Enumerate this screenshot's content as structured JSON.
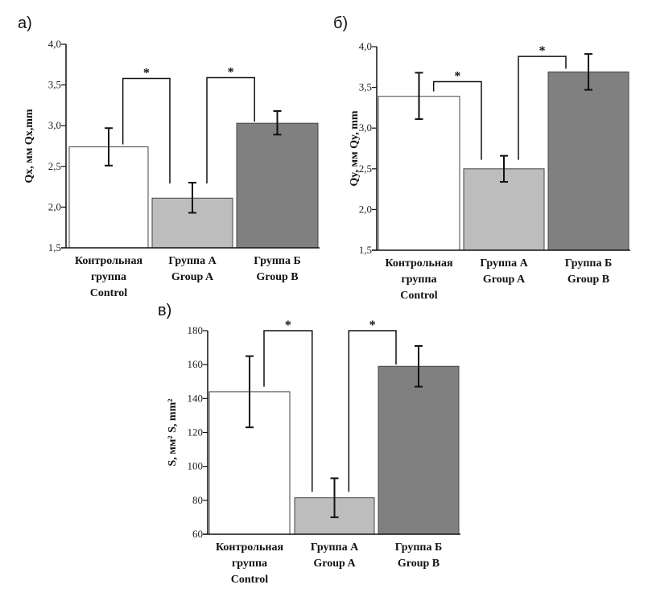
{
  "chart_data": [
    {
      "type": "bar",
      "panel_label": "а)",
      "ylabel": "Qx, мм  Qx,mm",
      "ylim": [
        1.5,
        4.0
      ],
      "yticks": [
        "1,5",
        "2,0",
        "2,5",
        "3,0",
        "3,5",
        "4,0"
      ],
      "ytick_values": [
        1.5,
        2.0,
        2.5,
        3.0,
        3.5,
        4.0
      ],
      "categories": [
        [
          "Контрольная",
          "группа",
          "Control"
        ],
        [
          "Группа А",
          "Group A"
        ],
        [
          "Группа Б",
          "Group B"
        ]
      ],
      "values": [
        2.74,
        2.11,
        3.03
      ],
      "error_low": [
        2.51,
        1.93,
        2.89
      ],
      "error_high": [
        2.97,
        2.3,
        3.18
      ],
      "colors": [
        "#ffffff",
        "#bdbdbd",
        "#808080"
      ],
      "significance": [
        {
          "from": 0,
          "to": 1,
          "level": 3.58,
          "left_end": 2.77,
          "right_end": 2.29,
          "label": "*"
        },
        {
          "from": 1,
          "to": 2,
          "level": 3.59,
          "left_end": 2.29,
          "right_end": 3.05,
          "label": "*"
        }
      ]
    },
    {
      "type": "bar",
      "panel_label": "б)",
      "ylabel": "Qy, мм  Qy, mm",
      "ylim": [
        1.5,
        4.0
      ],
      "yticks": [
        "1,5",
        "2,0",
        "2,5",
        "3,0",
        "3,5",
        "4,0"
      ],
      "ytick_values": [
        1.5,
        2.0,
        2.5,
        3.0,
        3.5,
        4.0
      ],
      "categories": [
        [
          "Контрольная",
          "группа",
          "Control"
        ],
        [
          "Группа А",
          "Group A"
        ],
        [
          "Группа Б",
          "Group B"
        ]
      ],
      "values": [
        3.39,
        2.5,
        3.69
      ],
      "error_low": [
        3.11,
        2.34,
        3.47
      ],
      "error_high": [
        3.68,
        2.66,
        3.91
      ],
      "colors": [
        "#ffffff",
        "#bdbdbd",
        "#808080"
      ],
      "significance": [
        {
          "from": 0,
          "to": 1,
          "level": 3.57,
          "left_end": 3.45,
          "right_end": 2.61,
          "label": "*"
        },
        {
          "from": 1,
          "to": 2,
          "level": 3.88,
          "left_end": 2.61,
          "right_end": 3.73,
          "label": "*"
        }
      ]
    },
    {
      "type": "bar",
      "panel_label": "в)",
      "ylabel": "S, мм²  S, mm²",
      "ylim": [
        60,
        180
      ],
      "yticks": [
        "60",
        "80",
        "100",
        "120",
        "140",
        "160",
        "180"
      ],
      "ytick_values": [
        60,
        80,
        100,
        120,
        140,
        160,
        180
      ],
      "categories": [
        [
          "Контрольная",
          "группа",
          "Control"
        ],
        [
          "Группа А",
          "Group A"
        ],
        [
          "Группа Б",
          "Group B"
        ]
      ],
      "values": [
        144,
        81.5,
        159
      ],
      "error_low": [
        123,
        70,
        147
      ],
      "error_high": [
        165,
        93,
        171
      ],
      "colors": [
        "#ffffff",
        "#bdbdbd",
        "#808080"
      ],
      "significance": [
        {
          "from": 0,
          "to": 1,
          "level": 180,
          "left_end": 147,
          "right_end": 85,
          "label": "*"
        },
        {
          "from": 1,
          "to": 2,
          "level": 180,
          "left_end": 85,
          "right_end": 160,
          "label": "*"
        }
      ]
    }
  ]
}
